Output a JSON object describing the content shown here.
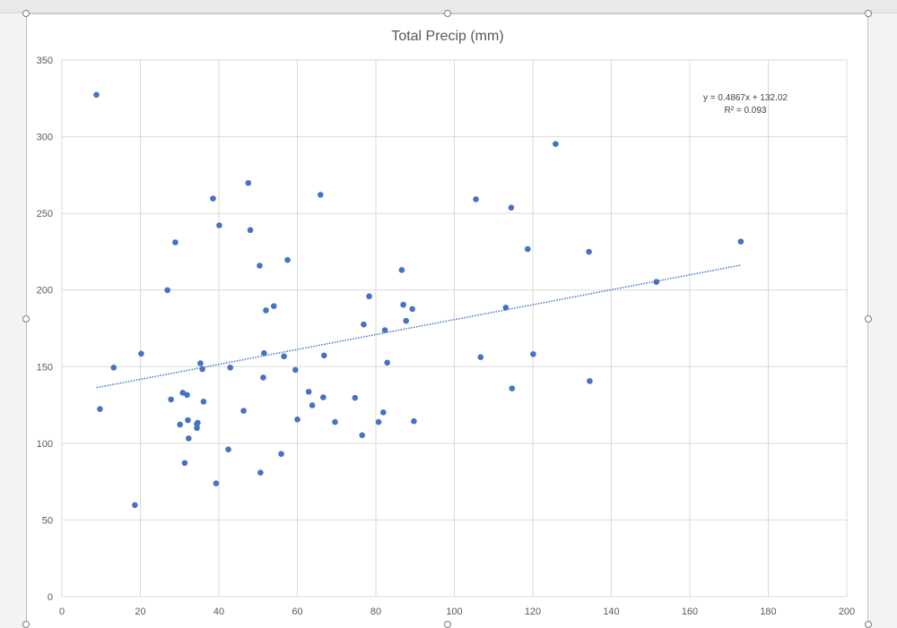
{
  "chart_data": {
    "type": "scatter",
    "title": "Total Precip (mm)",
    "xlabel": "",
    "ylabel": "",
    "xlim": [
      0,
      200
    ],
    "ylim": [
      0,
      350
    ],
    "xticks": [
      0,
      20,
      40,
      60,
      80,
      100,
      120,
      140,
      160,
      180,
      200
    ],
    "yticks": [
      0,
      50,
      100,
      150,
      200,
      250,
      300,
      350
    ],
    "grid": true,
    "marker_color": "#4472c4",
    "trendline_color": "#4472c4",
    "series": [
      {
        "x": [
          8.8,
          9.7,
          13.2,
          18.6,
          20.2,
          26.9,
          27.8,
          28.9,
          30.1,
          30.8,
          31.3,
          31.9,
          32.1,
          32.3,
          34.4,
          34.4,
          34.6,
          35.3,
          35.8,
          36.1,
          38.5,
          39.3,
          40.1,
          42.4,
          42.9,
          46.3,
          47.5,
          48.0,
          50.4,
          50.6,
          51.3,
          51.5,
          52.0,
          54.0,
          55.9,
          56.6,
          57.5,
          59.5,
          60.0,
          62.9,
          63.8,
          65.9,
          66.6,
          66.8,
          69.6,
          74.7,
          76.5,
          76.9,
          78.3,
          80.7,
          81.9,
          82.3,
          82.9,
          86.6,
          87.0,
          87.7,
          89.3,
          89.7,
          105.5,
          106.7,
          113.1,
          114.5,
          114.7,
          118.7,
          120.1,
          125.8,
          134.3,
          134.5,
          151.5,
          173.0
        ],
        "y": [
          327.3,
          122.4,
          149.4,
          59.7,
          158.5,
          199.9,
          128.6,
          231.1,
          112.2,
          133.0,
          87.2,
          131.6,
          115.1,
          103.2,
          112.6,
          110.0,
          113.4,
          152.2,
          148.4,
          127.2,
          259.7,
          73.9,
          242.2,
          96.0,
          149.4,
          121.2,
          269.8,
          239.1,
          215.9,
          80.9,
          142.9,
          158.8,
          186.7,
          189.5,
          93.1,
          156.7,
          219.6,
          147.9,
          115.6,
          133.6,
          124.8,
          262.1,
          130.0,
          157.3,
          113.9,
          129.7,
          105.3,
          177.5,
          195.9,
          113.9,
          120.2,
          173.8,
          152.6,
          213.0,
          190.4,
          179.9,
          187.6,
          114.4,
          259.2,
          156.2,
          188.5,
          253.7,
          135.8,
          226.7,
          158.2,
          295.3,
          224.9,
          140.6,
          205.3,
          231.6
        ]
      }
    ],
    "trendline": {
      "type": "linear",
      "slope": 0.4867,
      "intercept": 132.02,
      "x_range": [
        8.8,
        173.0
      ],
      "style": "dotted",
      "equation_text": "y = 0.4867x + 132.02",
      "r2_text": "R² = 0.093"
    }
  }
}
